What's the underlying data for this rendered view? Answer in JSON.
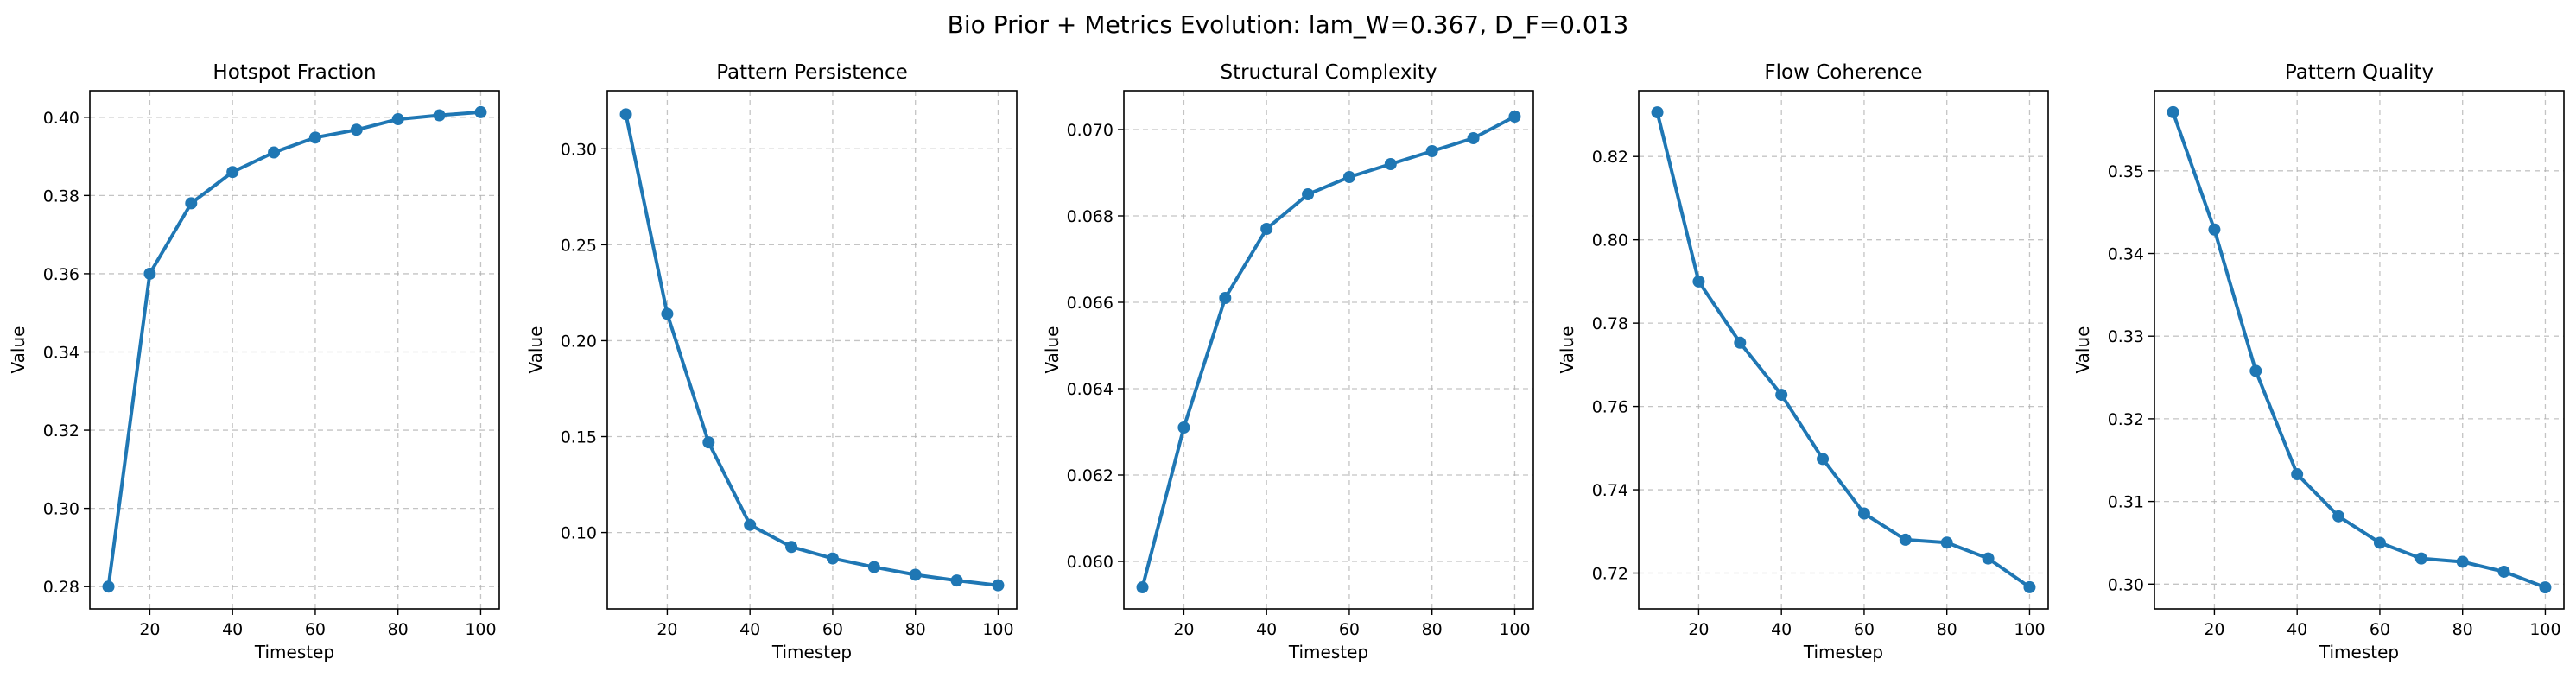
{
  "figure": {
    "suptitle": "Bio Prior + Metrics Evolution: lam_W=0.367, D_F=0.013"
  },
  "colors": {
    "series": "#1f77b4"
  },
  "chart_data": [
    {
      "type": "line",
      "title": "Hotspot Fraction",
      "xlabel": "Timestep",
      "ylabel": "Value",
      "grid": true,
      "x": [
        10,
        20,
        30,
        40,
        50,
        60,
        70,
        80,
        90,
        100
      ],
      "series": [
        {
          "values": [
            0.28,
            0.36,
            0.378,
            0.386,
            0.391,
            0.3948,
            0.3968,
            0.3995,
            0.4005,
            0.4013
          ]
        }
      ],
      "xlim": [
        5.5,
        104.5
      ],
      "ylim": [
        0.2743,
        0.4068
      ],
      "xticks": [
        20,
        40,
        60,
        80,
        100
      ],
      "yticks": [
        0.28,
        0.3,
        0.32,
        0.34,
        0.36,
        0.38,
        0.4
      ],
      "ytick_labels": [
        "0.28",
        "0.30",
        "0.32",
        "0.34",
        "0.36",
        "0.38",
        "0.40"
      ]
    },
    {
      "type": "line",
      "title": "Pattern Persistence",
      "xlabel": "Timestep",
      "ylabel": "Value",
      "grid": true,
      "x": [
        10,
        20,
        30,
        40,
        50,
        60,
        70,
        80,
        90,
        100
      ],
      "series": [
        {
          "values": [
            0.318,
            0.214,
            0.147,
            0.104,
            0.0925,
            0.0865,
            0.082,
            0.078,
            0.075,
            0.0725
          ]
        }
      ],
      "xlim": [
        5.5,
        104.5
      ],
      "ylim": [
        0.0602,
        0.3303
      ],
      "xticks": [
        20,
        40,
        60,
        80,
        100
      ],
      "yticks": [
        0.1,
        0.15,
        0.2,
        0.25,
        0.3
      ],
      "ytick_labels": [
        "0.10",
        "0.15",
        "0.20",
        "0.25",
        "0.30"
      ]
    },
    {
      "type": "line",
      "title": "Structural Complexity",
      "xlabel": "Timestep",
      "ylabel": "Value",
      "grid": true,
      "x": [
        10,
        20,
        30,
        40,
        50,
        60,
        70,
        80,
        90,
        100
      ],
      "series": [
        {
          "values": [
            0.0594,
            0.0631,
            0.0661,
            0.0677,
            0.0685,
            0.0689,
            0.0692,
            0.0695,
            0.0698,
            0.0703
          ]
        }
      ],
      "xlim": [
        5.5,
        104.5
      ],
      "ylim": [
        0.0589,
        0.0709
      ],
      "xticks": [
        20,
        40,
        60,
        80,
        100
      ],
      "yticks": [
        0.06,
        0.062,
        0.064,
        0.066,
        0.068,
        0.07
      ],
      "ytick_labels": [
        "0.060",
        "0.062",
        "0.064",
        "0.066",
        "0.068",
        "0.070"
      ]
    },
    {
      "type": "line",
      "title": "Flow Coherence",
      "xlabel": "Timestep",
      "ylabel": "Value",
      "grid": true,
      "x": [
        10,
        20,
        30,
        40,
        50,
        60,
        70,
        80,
        90,
        100
      ],
      "series": [
        {
          "values": [
            0.8306,
            0.79,
            0.7753,
            0.7628,
            0.7474,
            0.7343,
            0.728,
            0.7273,
            0.7235,
            0.7166
          ]
        }
      ],
      "xlim": [
        5.5,
        104.5
      ],
      "ylim": [
        0.7114,
        0.8358
      ],
      "xticks": [
        20,
        40,
        60,
        80,
        100
      ],
      "yticks": [
        0.72,
        0.74,
        0.76,
        0.78,
        0.8,
        0.82
      ],
      "ytick_labels": [
        "0.72",
        "0.74",
        "0.76",
        "0.78",
        "0.80",
        "0.82"
      ]
    },
    {
      "type": "line",
      "title": "Pattern Quality",
      "xlabel": "Timestep",
      "ylabel": "Value",
      "grid": true,
      "x": [
        10,
        20,
        30,
        40,
        50,
        60,
        70,
        80,
        90,
        100
      ],
      "series": [
        {
          "values": [
            0.3571,
            0.3429,
            0.3258,
            0.3133,
            0.3082,
            0.305,
            0.3031,
            0.3027,
            0.3015,
            0.2996
          ]
        }
      ],
      "xlim": [
        5.5,
        104.5
      ],
      "ylim": [
        0.297,
        0.3597
      ],
      "xticks": [
        20,
        40,
        60,
        80,
        100
      ],
      "yticks": [
        0.3,
        0.31,
        0.32,
        0.33,
        0.34,
        0.35
      ],
      "ytick_labels": [
        "0.30",
        "0.31",
        "0.32",
        "0.33",
        "0.34",
        "0.35"
      ]
    }
  ]
}
